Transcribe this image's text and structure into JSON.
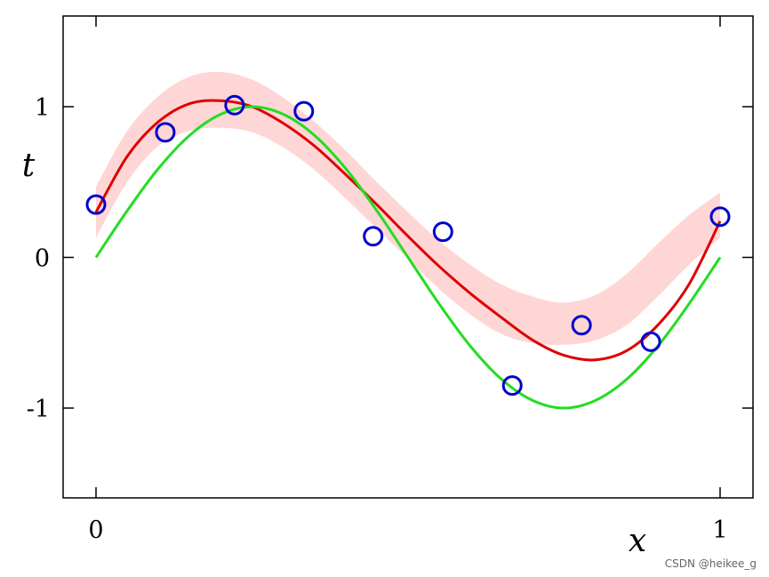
{
  "chart_data": {
    "type": "line",
    "xlabel": "x",
    "ylabel": "t",
    "xlim": [
      -0.05,
      1.05
    ],
    "ylim": [
      -1.6,
      1.6
    ],
    "xticks": [
      0,
      1
    ],
    "xtick_labels": [
      "0",
      "1"
    ],
    "yticks": [
      -1,
      0,
      1
    ],
    "ytick_labels": [
      "-1",
      "0",
      "1"
    ],
    "grid": false,
    "series": [
      {
        "kind": "band",
        "color": "#ffd6d6",
        "x": [
          0,
          0.05,
          0.1,
          0.15,
          0.2,
          0.25,
          0.3,
          0.35,
          0.4,
          0.45,
          0.5,
          0.55,
          0.6,
          0.65,
          0.7,
          0.75,
          0.8,
          0.85,
          0.9,
          0.95,
          1
        ],
        "lower": [
          0.13,
          0.5,
          0.74,
          0.84,
          0.86,
          0.83,
          0.73,
          0.58,
          0.39,
          0.19,
          -0.01,
          -0.21,
          -0.38,
          -0.51,
          -0.57,
          -0.58,
          -0.55,
          -0.45,
          -0.26,
          -0.05,
          0.13
        ],
        "upper": [
          0.47,
          0.84,
          1.07,
          1.2,
          1.23,
          1.18,
          1.06,
          0.9,
          0.71,
          0.5,
          0.3,
          0.11,
          -0.05,
          -0.18,
          -0.26,
          -0.3,
          -0.25,
          -0.11,
          0.09,
          0.28,
          0.43
        ]
      },
      {
        "kind": "line",
        "color": "#dd0000",
        "x": [
          0,
          0.05,
          0.1,
          0.15,
          0.2,
          0.25,
          0.3,
          0.35,
          0.4,
          0.45,
          0.5,
          0.55,
          0.6,
          0.65,
          0.7,
          0.75,
          0.8,
          0.85,
          0.9,
          0.95,
          1
        ],
        "y": [
          0.3,
          0.67,
          0.9,
          1.02,
          1.04,
          1.0,
          0.89,
          0.74,
          0.55,
          0.35,
          0.14,
          -0.06,
          -0.24,
          -0.4,
          -0.55,
          -0.65,
          -0.68,
          -0.62,
          -0.45,
          -0.18,
          0.24
        ]
      },
      {
        "kind": "line",
        "color": "#22dd22",
        "x": [
          0,
          0.05,
          0.1,
          0.15,
          0.2,
          0.25,
          0.3,
          0.35,
          0.4,
          0.45,
          0.5,
          0.55,
          0.6,
          0.65,
          0.7,
          0.75,
          0.8,
          0.85,
          0.9,
          0.95,
          1
        ],
        "y": [
          0,
          0.31,
          0.59,
          0.81,
          0.95,
          1.0,
          0.95,
          0.81,
          0.59,
          0.31,
          0,
          -0.31,
          -0.59,
          -0.81,
          -0.95,
          -1.0,
          -0.95,
          -0.81,
          -0.59,
          -0.31,
          0
        ]
      },
      {
        "kind": "scatter",
        "color": "#0000cc",
        "x": [
          0,
          0.111,
          0.222,
          0.333,
          0.444,
          0.556,
          0.667,
          0.778,
          0.889,
          1.0
        ],
        "y": [
          0.35,
          0.83,
          1.01,
          0.97,
          0.14,
          0.17,
          -0.85,
          -0.45,
          -0.56,
          0.27
        ]
      }
    ]
  },
  "watermark": "CSDN @heikee_g"
}
